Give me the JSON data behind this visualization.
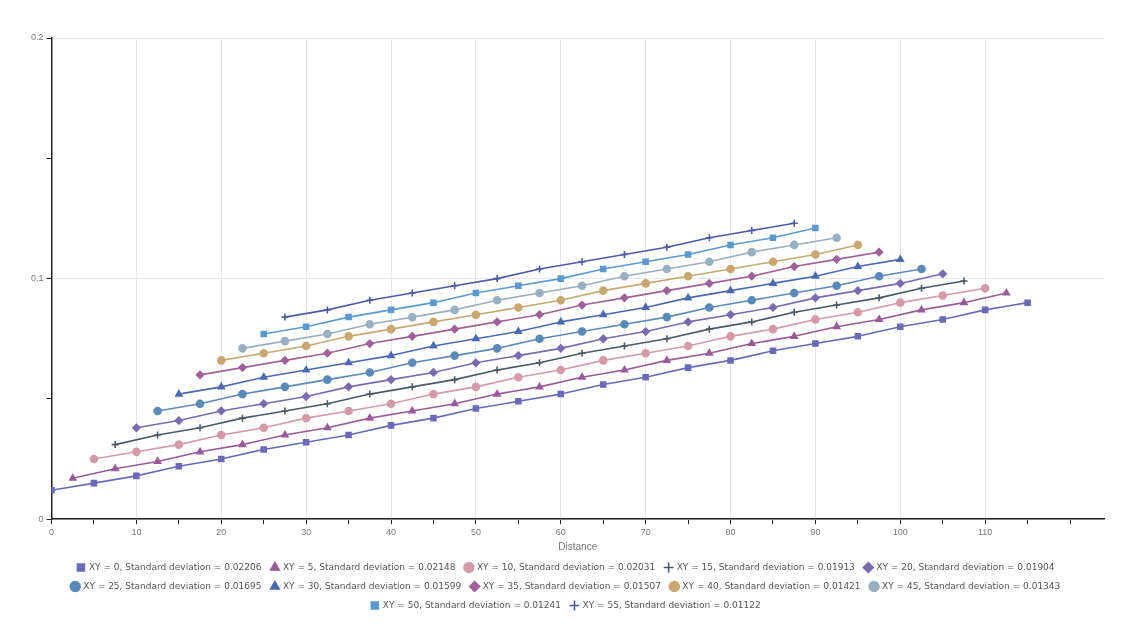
{
  "chart_data": {
    "type": "line",
    "xlabel": "Distance",
    "xlim": [
      0,
      124
    ],
    "xticks": [
      0,
      {
        "value": 5,
        "label": null
      },
      10,
      {
        "value": 15,
        "label": null
      },
      20,
      {
        "value": 25,
        "label": null
      },
      30,
      {
        "value": 35,
        "label": null
      },
      40,
      {
        "value": 45,
        "label": null
      },
      50,
      {
        "value": 55,
        "label": null
      },
      60,
      {
        "value": 65,
        "label": null
      },
      70,
      {
        "value": 75,
        "label": null
      },
      80,
      {
        "value": 85,
        "label": null
      },
      90,
      {
        "value": 95,
        "label": null
      },
      100,
      {
        "value": 105,
        "label": null
      },
      110,
      {
        "value": 115,
        "label": null
      },
      {
        "value": 120,
        "label": null
      }
    ],
    "ylim": [
      0,
      0.2
    ],
    "yticks": [
      0,
      {
        "value": 0.05,
        "label": null
      },
      0.1,
      {
        "value": 0.15,
        "label": null
      },
      0.2
    ],
    "grid": true,
    "legend": "bottom",
    "series": [
      {
        "name": "XY = 0, Standard deviation = 0.02206",
        "color": "#6a6ab8",
        "marker": "square",
        "x": [
          0,
          5,
          10,
          15,
          20,
          25,
          30,
          35,
          40,
          45,
          50,
          55,
          60,
          65,
          70,
          75,
          80,
          85,
          90,
          95,
          100,
          105,
          110,
          115
        ],
        "values": [
          0.012,
          0.015,
          0.018,
          0.022,
          0.025,
          0.029,
          0.032,
          0.035,
          0.039,
          0.042,
          0.046,
          0.049,
          0.052,
          0.056,
          0.059,
          0.063,
          0.066,
          0.07,
          0.073,
          0.076,
          0.08,
          0.083,
          0.087,
          0.09
        ]
      },
      {
        "name": "XY = 5, Standard deviation = 0.02148",
        "color": "#9a5a9a",
        "marker": "triangle",
        "x": [
          2.5,
          7.5,
          12.5,
          17.5,
          22.5,
          27.5,
          32.5,
          37.5,
          42.5,
          47.5,
          52.5,
          57.5,
          62.5,
          67.5,
          72.5,
          77.5,
          82.5,
          87.5,
          92.5,
          97.5,
          102.5,
          107.5,
          112.5
        ],
        "values": [
          0.017,
          0.021,
          0.024,
          0.028,
          0.031,
          0.035,
          0.038,
          0.042,
          0.045,
          0.048,
          0.052,
          0.055,
          0.059,
          0.062,
          0.066,
          0.069,
          0.073,
          0.076,
          0.08,
          0.083,
          0.087,
          0.09,
          0.094
        ]
      },
      {
        "name": "XY = 10, Standard deviation = 0.02031",
        "color": "#d49aa8",
        "marker": "circle",
        "x": [
          5,
          10,
          15,
          20,
          25,
          30,
          35,
          40,
          45,
          50,
          55,
          60,
          65,
          70,
          75,
          80,
          85,
          90,
          95,
          100,
          105,
          110
        ],
        "values": [
          0.025,
          0.028,
          0.031,
          0.035,
          0.038,
          0.042,
          0.045,
          0.048,
          0.052,
          0.055,
          0.059,
          0.062,
          0.066,
          0.069,
          0.072,
          0.076,
          0.079,
          0.083,
          0.086,
          0.09,
          0.093,
          0.096
        ]
      },
      {
        "name": "XY = 15, Standard deviation = 0.01913",
        "color": "#4a5a6a",
        "marker": "cross",
        "x": [
          7.5,
          12.5,
          17.5,
          22.5,
          27.5,
          32.5,
          37.5,
          42.5,
          47.5,
          52.5,
          57.5,
          62.5,
          67.5,
          72.5,
          77.5,
          82.5,
          87.5,
          92.5,
          97.5,
          102.5,
          107.5
        ],
        "values": [
          0.031,
          0.035,
          0.038,
          0.042,
          0.045,
          0.048,
          0.052,
          0.055,
          0.058,
          0.062,
          0.065,
          0.069,
          0.072,
          0.075,
          0.079,
          0.082,
          0.086,
          0.089,
          0.092,
          0.096,
          0.099
        ]
      },
      {
        "name": "XY = 20, Standard deviation = 0.01904",
        "color": "#7a6ab0",
        "marker": "diamond",
        "x": [
          10,
          15,
          20,
          25,
          30,
          35,
          40,
          45,
          50,
          55,
          60,
          65,
          70,
          75,
          80,
          85,
          90,
          95,
          100,
          105
        ],
        "values": [
          0.038,
          0.041,
          0.045,
          0.048,
          0.051,
          0.055,
          0.058,
          0.061,
          0.065,
          0.068,
          0.071,
          0.075,
          0.078,
          0.082,
          0.085,
          0.088,
          0.092,
          0.095,
          0.098,
          0.102
        ]
      },
      {
        "name": "XY = 25, Standard deviation = 0.01695",
        "color": "#5a8ab8",
        "marker": "circle",
        "x": [
          12.5,
          17.5,
          22.5,
          27.5,
          32.5,
          37.5,
          42.5,
          47.5,
          52.5,
          57.5,
          62.5,
          67.5,
          72.5,
          77.5,
          82.5,
          87.5,
          92.5,
          97.5,
          102.5
        ],
        "values": [
          0.045,
          0.048,
          0.052,
          0.055,
          0.058,
          0.061,
          0.065,
          0.068,
          0.071,
          0.075,
          0.078,
          0.081,
          0.084,
          0.088,
          0.091,
          0.094,
          0.097,
          0.101,
          0.104
        ]
      },
      {
        "name": "XY = 30, Standard deviation = 0.01599",
        "color": "#4a6ab0",
        "marker": "triangle",
        "x": [
          15,
          20,
          25,
          30,
          35,
          40,
          45,
          50,
          55,
          60,
          65,
          70,
          75,
          80,
          85,
          90,
          95,
          100
        ],
        "values": [
          0.052,
          0.055,
          0.059,
          0.062,
          0.065,
          0.068,
          0.072,
          0.075,
          0.078,
          0.082,
          0.085,
          0.088,
          0.092,
          0.095,
          0.098,
          0.101,
          0.105,
          0.108
        ]
      },
      {
        "name": "XY = 35, Standard deviation = 0.01507",
        "color": "#a0609a",
        "marker": "diamond",
        "x": [
          17.5,
          22.5,
          27.5,
          32.5,
          37.5,
          42.5,
          47.5,
          52.5,
          57.5,
          62.5,
          67.5,
          72.5,
          77.5,
          82.5,
          87.5,
          92.5,
          97.5
        ],
        "values": [
          0.06,
          0.063,
          0.066,
          0.069,
          0.073,
          0.076,
          0.079,
          0.082,
          0.085,
          0.089,
          0.092,
          0.095,
          0.098,
          0.101,
          0.105,
          0.108,
          0.111
        ]
      },
      {
        "name": "XY = 40, Standard deviation = 0.01421",
        "color": "#c8a870",
        "marker": "circle",
        "x": [
          20,
          25,
          30,
          35,
          40,
          45,
          50,
          55,
          60,
          65,
          70,
          75,
          80,
          85,
          90,
          95
        ],
        "values": [
          0.066,
          0.069,
          0.072,
          0.076,
          0.079,
          0.082,
          0.085,
          0.088,
          0.091,
          0.095,
          0.098,
          0.101,
          0.104,
          0.107,
          0.11,
          0.114
        ]
      },
      {
        "name": "XY = 45, Standard deviation = 0.01343",
        "color": "#9ab0c0",
        "marker": "circle",
        "x": [
          22.5,
          27.5,
          32.5,
          37.5,
          42.5,
          47.5,
          52.5,
          57.5,
          62.5,
          67.5,
          72.5,
          77.5,
          82.5,
          87.5,
          92.5
        ],
        "values": [
          0.071,
          0.074,
          0.077,
          0.081,
          0.084,
          0.087,
          0.091,
          0.094,
          0.097,
          0.101,
          0.104,
          0.107,
          0.111,
          0.114,
          0.117
        ]
      },
      {
        "name": "XY = 50, Standard deviation = 0.01241",
        "color": "#5a9ad0",
        "marker": "square",
        "x": [
          25,
          30,
          35,
          40,
          45,
          50,
          55,
          60,
          65,
          70,
          75,
          80,
          85,
          90
        ],
        "values": [
          0.077,
          0.08,
          0.084,
          0.087,
          0.09,
          0.094,
          0.097,
          0.1,
          0.104,
          0.107,
          0.11,
          0.114,
          0.117,
          0.121
        ]
      },
      {
        "name": "XY = 55, Standard deviation = 0.01122",
        "color": "#4a5aa8",
        "marker": "cross",
        "x": [
          27.5,
          32.5,
          37.5,
          42.5,
          47.5,
          52.5,
          57.5,
          62.5,
          67.5,
          72.5,
          77.5,
          82.5,
          87.5
        ],
        "values": [
          0.084,
          0.087,
          0.091,
          0.094,
          0.097,
          0.1,
          0.104,
          0.107,
          0.11,
          0.113,
          0.117,
          0.12,
          0.123
        ]
      }
    ]
  }
}
